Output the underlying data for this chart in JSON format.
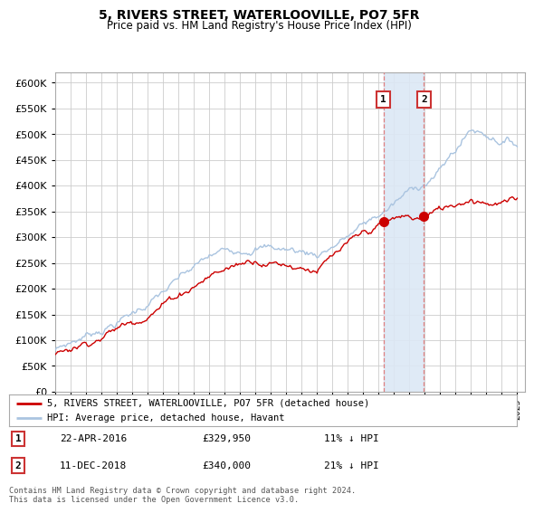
{
  "title": "5, RIVERS STREET, WATERLOOVILLE, PO7 5FR",
  "subtitle": "Price paid vs. HM Land Registry's House Price Index (HPI)",
  "ylim": [
    0,
    620000
  ],
  "yticks": [
    0,
    50000,
    100000,
    150000,
    200000,
    250000,
    300000,
    350000,
    400000,
    450000,
    500000,
    550000,
    600000
  ],
  "purchase1_date": 2016.31,
  "purchase1_price": 329950,
  "purchase2_date": 2018.94,
  "purchase2_price": 340000,
  "hpi_color": "#aac4e0",
  "price_color": "#cc0000",
  "shade_color": "#dce8f5",
  "background_color": "#ffffff",
  "grid_color": "#cccccc",
  "annotation1_date": "22-APR-2016",
  "annotation1_price": "£329,950",
  "annotation1_hpi": "11% ↓ HPI",
  "annotation2_date": "11-DEC-2018",
  "annotation2_price": "£340,000",
  "annotation2_hpi": "21% ↓ HPI",
  "legend_label1": "5, RIVERS STREET, WATERLOOVILLE, PO7 5FR (detached house)",
  "legend_label2": "HPI: Average price, detached house, Havant",
  "footnote": "Contains HM Land Registry data © Crown copyright and database right 2024.\nThis data is licensed under the Open Government Licence v3.0."
}
